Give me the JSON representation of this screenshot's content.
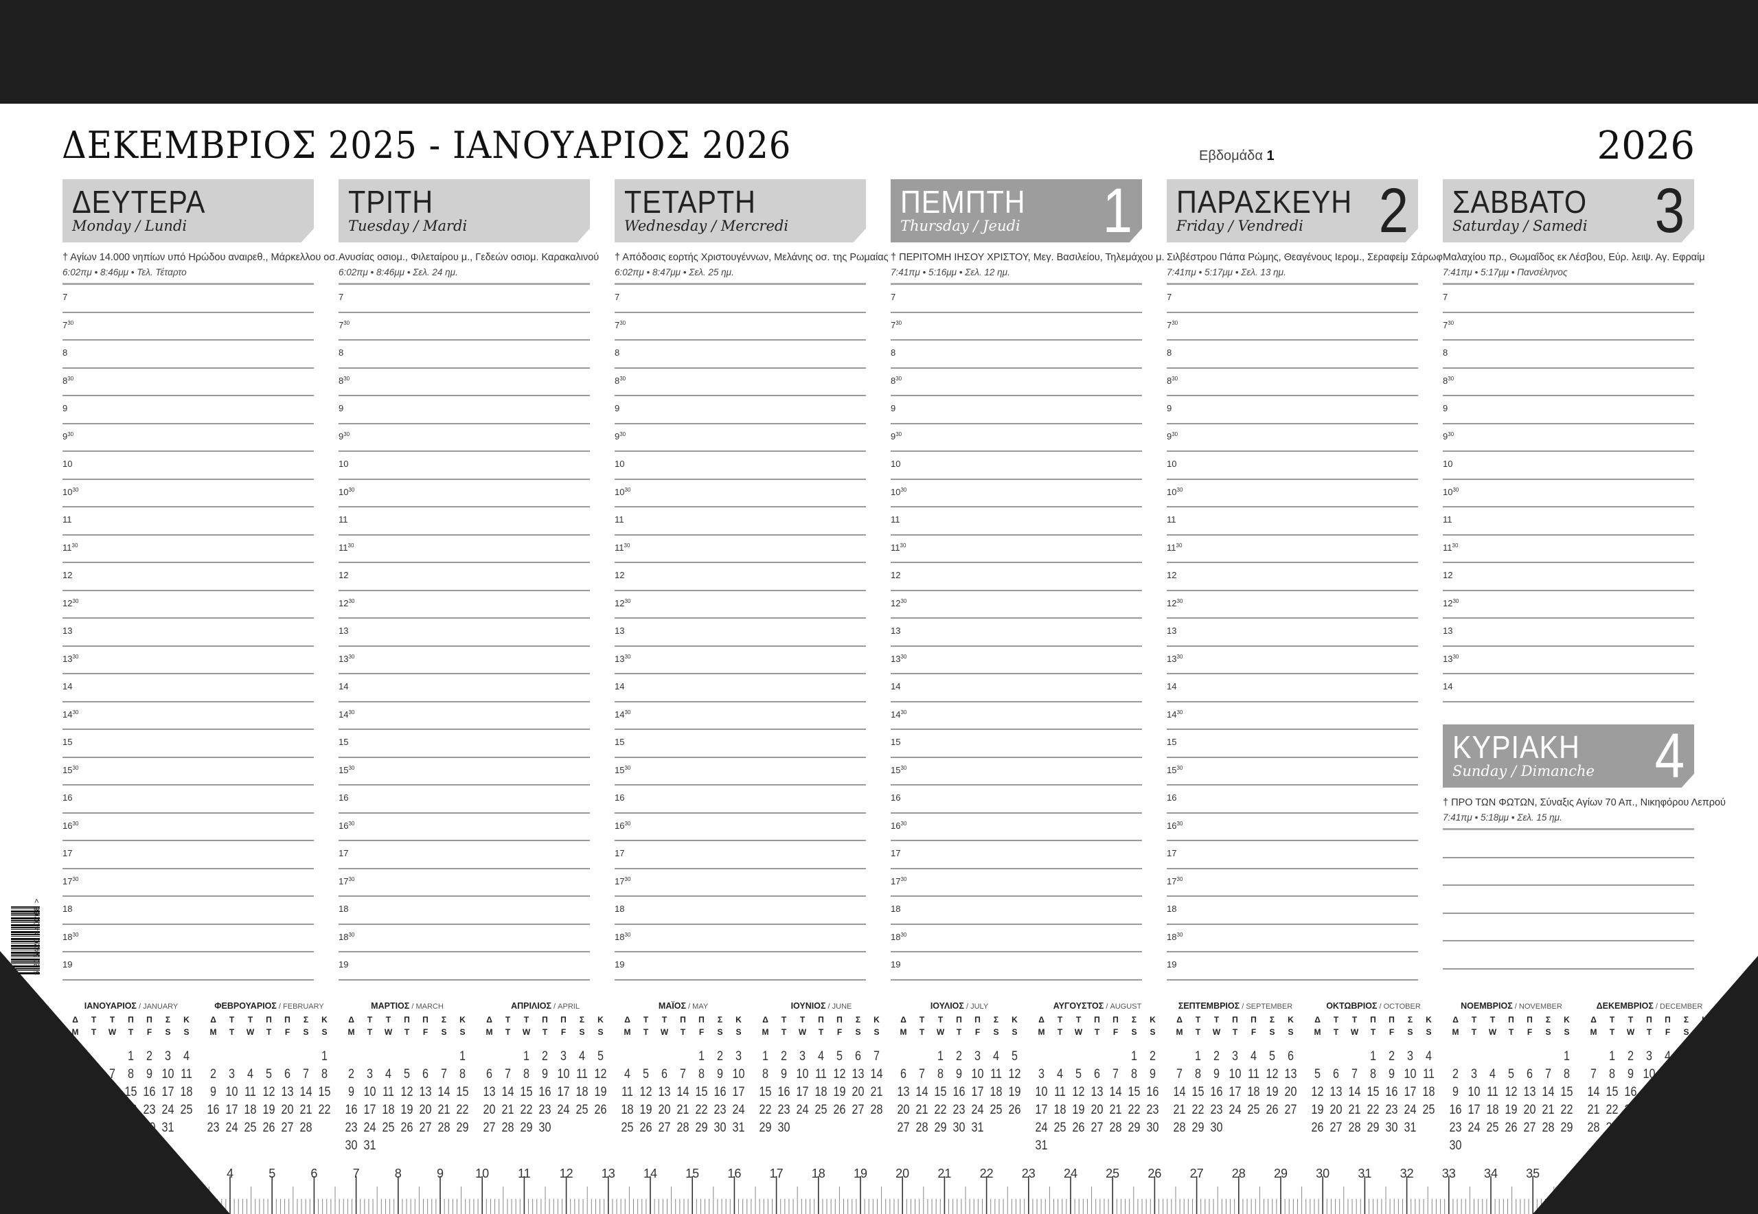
{
  "header": {
    "title": "ΔΕΚΕΜΒΡΙΟΣ 2025 - ΙΑΝΟΥΑΡΙΟΣ 2026",
    "week_label": "Εβδομάδα",
    "week_number": "1",
    "year": "2026"
  },
  "colors": {
    "day_header": "#d0d0d0",
    "holiday_header": "#9d9d9d",
    "background_band": "#1e1e1e"
  },
  "slots": [
    [
      "7",
      ""
    ],
    [
      "7",
      "30"
    ],
    [
      "8",
      ""
    ],
    [
      "8",
      "30"
    ],
    [
      "9",
      ""
    ],
    [
      "9",
      "30"
    ],
    [
      "10",
      ""
    ],
    [
      "10",
      "30"
    ],
    [
      "11",
      ""
    ],
    [
      "11",
      "30"
    ],
    [
      "12",
      ""
    ],
    [
      "12",
      "30"
    ],
    [
      "13",
      ""
    ],
    [
      "13",
      "30"
    ],
    [
      "14",
      ""
    ],
    [
      "14",
      "30"
    ],
    [
      "15",
      ""
    ],
    [
      "15",
      "30"
    ],
    [
      "16",
      ""
    ],
    [
      "16",
      "30"
    ],
    [
      "17",
      ""
    ],
    [
      "17",
      "30"
    ],
    [
      "18",
      ""
    ],
    [
      "18",
      "30"
    ],
    [
      "19",
      ""
    ]
  ],
  "days": [
    {
      "name": "ΔΕΥΤΕΡΑ",
      "sub": "Monday / Lundi",
      "number": "",
      "saint": "† Αγίων 14.000 νηπίων υπό Ηρώδου αναιρεθ., Μάρκελλου οσ.",
      "sun": "6:02πμ • 8:46μμ • Τελ. Τέταρτο",
      "highlight": false,
      "slot_count": 25
    },
    {
      "name": "ΤΡΙΤΗ",
      "sub": "Tuesday / Mardi",
      "number": "",
      "saint": "Ανυσίας οσιομ., Φιλεταίρου μ., Γεδεών οσιομ. Καρακαλινού",
      "sun": "6:02πμ • 8:46μμ • Σελ. 24 ημ.",
      "highlight": false,
      "slot_count": 25
    },
    {
      "name": "ΤΕΤΑΡΤΗ",
      "sub": "Wednesday / Mercredi",
      "number": "",
      "saint": "† Απόδοσις εορτής Χριστουγέννων, Μελάνης οσ. της Ρωμαίας",
      "sun": "6:02πμ • 8:47μμ • Σελ. 25 ημ.",
      "highlight": false,
      "slot_count": 25
    },
    {
      "name": "ΠΕΜΠΤΗ",
      "sub": "Thursday / Jeudi",
      "number": "1",
      "saint": "† ΠΕΡΙΤΟΜΗ ΙΗΣΟΥ ΧΡΙΣΤΟΥ, Μεγ. Βασιλείου, Τηλεμάχου μ.",
      "sun": "7:41πμ • 5:16μμ • Σελ. 12 ημ.",
      "highlight": true,
      "slot_count": 25
    },
    {
      "name": "ΠΑΡΑΣΚΕΥΗ",
      "sub": "Friday / Vendredi",
      "number": "2",
      "saint": "Σιλβέστρου Πάπα Ρώμης, Θεαγένους Ιερομ., Σεραφείμ Σάρωφ",
      "sun": "7:41πμ • 5:17μμ • Σελ. 13 ημ.",
      "highlight": false,
      "slot_count": 25
    },
    {
      "name": "ΣΑΒΒΑΤΟ",
      "sub": "Saturday / Samedi",
      "number": "3",
      "saint": "Μαλαχίου πρ., Θωμαΐδος εκ Λέσβου, Εύρ. λειψ. Αγ. Εφραίμ",
      "sun": "7:41πμ • 5:17μμ • Πανσέληνος",
      "highlight": false,
      "slot_count": 15
    }
  ],
  "sunday": {
    "name": "ΚΥΡΙΑΚΗ",
    "sub": "Sunday / Dimanche",
    "number": "4",
    "saint": "† ΠΡΟ ΤΩΝ ΦΩΤΩΝ, Σύναξις Αγίων 70 Απ., Νικηφόρου Λεπρού",
    "sun": "7:41πμ • 5:18μμ • Σελ. 15 ημ.",
    "highlight": true,
    "blank_lines": 5
  },
  "mini_calendar": {
    "weekday_gr": [
      "Δ",
      "Τ",
      "Τ",
      "Π",
      "Π",
      "Σ",
      "Κ"
    ],
    "weekday_en": [
      "M",
      "T",
      "W",
      "T",
      "F",
      "S",
      "S"
    ],
    "months": [
      {
        "gr": "ΙΑΝΟΥΑΡΙΟΣ",
        "en": "JANUARY",
        "first_weekday": 3,
        "days": 31
      },
      {
        "gr": "ΦΕΒΡΟΥΑΡΙΟΣ",
        "en": "FEBRUARY",
        "first_weekday": 6,
        "days": 28
      },
      {
        "gr": "ΜΑΡΤΙΟΣ",
        "en": "MARCH",
        "first_weekday": 6,
        "days": 31
      },
      {
        "gr": "ΑΠΡΙΛΙΟΣ",
        "en": "APRIL",
        "first_weekday": 2,
        "days": 30
      },
      {
        "gr": "ΜΑΪΟΣ",
        "en": "MAY",
        "first_weekday": 4,
        "days": 31
      },
      {
        "gr": "ΙΟΥΝΙΟΣ",
        "en": "JUNE",
        "first_weekday": 0,
        "days": 30
      },
      {
        "gr": "ΙΟΥΛΙΟΣ",
        "en": "JULY",
        "first_weekday": 2,
        "days": 31
      },
      {
        "gr": "ΑΥΓΟΥΣΤΟΣ",
        "en": "AUGUST",
        "first_weekday": 5,
        "days": 31
      },
      {
        "gr": "ΣΕΠΤΕΜΒΡΙΟΣ",
        "en": "SEPTEMBER",
        "first_weekday": 1,
        "days": 30
      },
      {
        "gr": "ΟΚΤΩΒΡΙΟΣ",
        "en": "OCTOBER",
        "first_weekday": 3,
        "days": 31
      },
      {
        "gr": "ΝΟΕΜΒΡΙΟΣ",
        "en": "NOVEMBER",
        "first_weekday": 6,
        "days": 30
      },
      {
        "gr": "ΔΕΚΕΜΒΡΙΟΣ",
        "en": "DECEMBER",
        "first_weekday": 1,
        "days": 31
      }
    ]
  },
  "ruler": {
    "unit": "cm",
    "first_label": 4,
    "last_label": 35
  },
  "barcode": {
    "digits": "5 205420 440268 >"
  }
}
